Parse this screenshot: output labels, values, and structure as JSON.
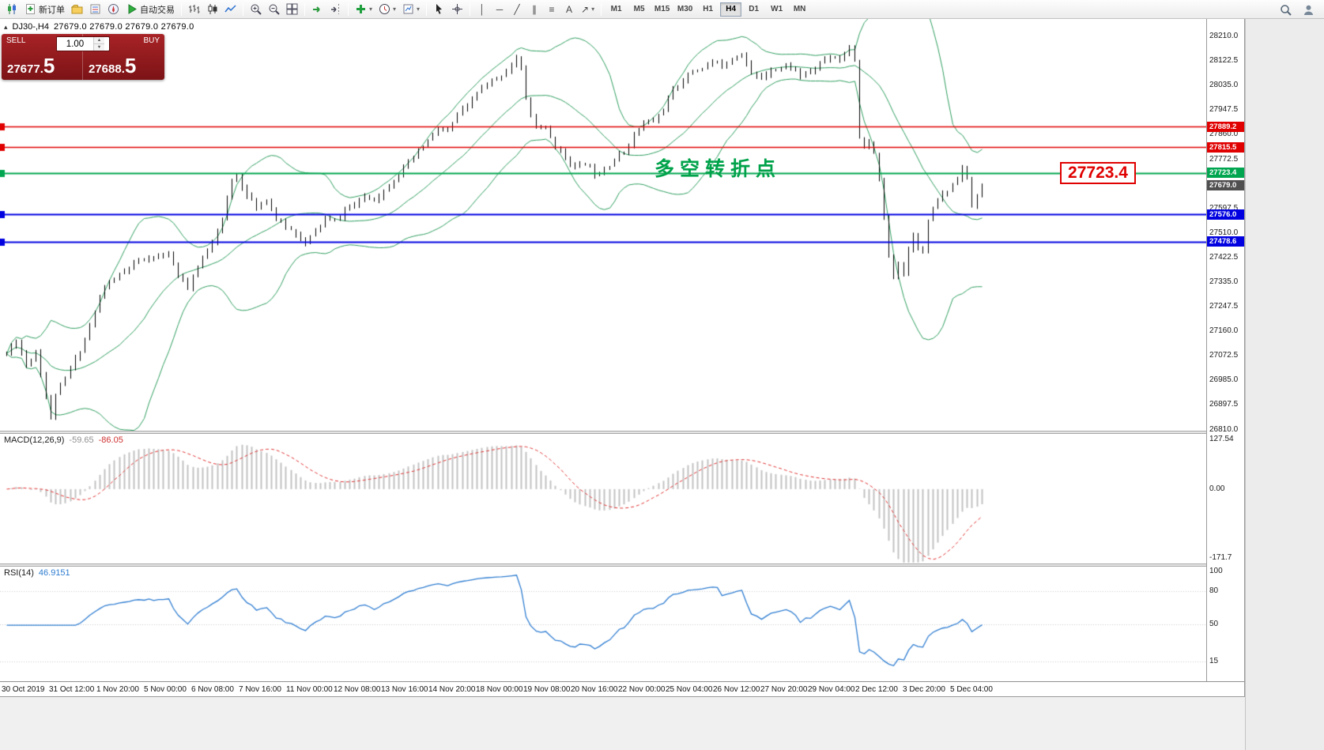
{
  "app": {
    "bg": "#f0f0f0"
  },
  "toolbar": {
    "groups": [
      {
        "name": "trade",
        "items": [
          {
            "name": "new-chart-button",
            "kind": "candles"
          },
          {
            "name": "new-order-button",
            "kind": "order",
            "label": "新订单"
          },
          {
            "name": "profiles-button",
            "kind": "folder"
          },
          {
            "name": "market-watch-button",
            "kind": "book"
          },
          {
            "name": "navigator-button",
            "kind": "nav"
          },
          {
            "name": "autotrading-button",
            "kind": "play",
            "label": "自动交易"
          }
        ]
      },
      {
        "name": "chart-types",
        "items": [
          {
            "name": "bar-chart-button",
            "kind": "bars"
          },
          {
            "name": "candlestick-chart-button",
            "kind": "candle"
          },
          {
            "name": "line-chart-button",
            "kind": "line"
          }
        ]
      },
      {
        "name": "zoom",
        "items": [
          {
            "name": "zoom-in-button",
            "kind": "zoomin"
          },
          {
            "name": "zoom-out-button",
            "kind": "zoomout"
          },
          {
            "name": "tile-windows-button",
            "kind": "grid"
          }
        ]
      },
      {
        "name": "scroll",
        "items": [
          {
            "name": "auto-scroll-button",
            "kind": "autoscroll"
          },
          {
            "name": "chart-shift-button",
            "kind": "shift"
          }
        ]
      },
      {
        "name": "dropdowns",
        "items": [
          {
            "name": "indicators-add-button",
            "kind": "plus",
            "caret": true
          },
          {
            "name": "periods-button",
            "kind": "clock",
            "caret": true
          },
          {
            "name": "templates-button",
            "kind": "template",
            "caret": true
          }
        ]
      },
      {
        "name": "cursors",
        "items": [
          {
            "name": "cursor-button",
            "kind": "cursor"
          },
          {
            "name": "crosshair-button",
            "kind": "crosshairsvg"
          }
        ]
      },
      {
        "name": "objects",
        "items": [
          {
            "name": "vertical-line-button",
            "kind": "vline"
          },
          {
            "name": "horizontal-line-button",
            "kind": "hline"
          },
          {
            "name": "trendline-button",
            "kind": "trend"
          },
          {
            "name": "channel-button",
            "kind": "channel"
          },
          {
            "name": "fibonacci-button",
            "kind": "fibo"
          },
          {
            "name": "text-tool-button",
            "kind": "text"
          },
          {
            "name": "arrows-tool-button",
            "kind": "arrows",
            "caret": true
          }
        ]
      }
    ],
    "timeframes": [
      "M1",
      "M5",
      "M15",
      "M30",
      "H1",
      "H4",
      "D1",
      "W1",
      "MN"
    ],
    "active_timeframe": "H4",
    "right_icons": [
      {
        "name": "search-button",
        "kind": "search"
      },
      {
        "name": "community-button",
        "kind": "person"
      }
    ],
    "icon_glyphs": {
      "vline": "│",
      "hline": "─",
      "trend": "╱",
      "channel": "∥",
      "fibo": "≡",
      "text": "A",
      "arrows": "↗",
      "caret": "▾",
      "collapse": "▴",
      "up": "▲",
      "down": "▼"
    }
  },
  "chart": {
    "symbol_title": "DJ30-,H4",
    "ohlc_text": "27679.0 27679.0 27679.0 27679.0",
    "annotation_text": "多空转折点",
    "price_callout": "27723.4",
    "trade_panel": {
      "sell_label": "SELL",
      "buy_label": "BUY",
      "sell_price": "27677.",
      "sell_price_big": "5",
      "buy_price": "27688.",
      "buy_price_big": "5",
      "volume": "1.00"
    },
    "current_price_tag": "27679.0",
    "current_price_tag_bg": "#4f4f4f",
    "levels": [
      {
        "price": 27889.2,
        "label": "27889.2",
        "color": "#e00000",
        "width": 1.6
      },
      {
        "price": 27815.5,
        "label": "27815.5",
        "color": "#e00000",
        "width": 1.6
      },
      {
        "price": 27723.4,
        "label": "27723.4",
        "color": "#00a64f",
        "width": 2
      },
      {
        "price": 27576.0,
        "label": "27576.0",
        "color": "#0000e0",
        "width": 2
      },
      {
        "price": 27478.6,
        "label": "27478.6",
        "color": "#0000e0",
        "width": 2
      }
    ],
    "axis": {
      "first": 28210.0,
      "step": 87.5,
      "count": 17
    }
  },
  "indicators": {
    "macd": {
      "label": "MACD(12,26,9)",
      "value": "-59.65",
      "signal_value": "-86.05",
      "axis_top": "127.54",
      "axis_zero": "0.00",
      "axis_bottom": "-171.7",
      "scale_max": 130,
      "scale_min": -175
    },
    "rsi": {
      "label": "RSI(14)",
      "value": "46.9151",
      "axis": [
        100,
        80,
        50,
        15
      ]
    }
  },
  "time_axis": [
    "30 Oct 2019",
    "31 Oct 12:00",
    "1 Nov 20:00",
    "5 Nov 00:00",
    "6 Nov 08:00",
    "7 Nov 16:00",
    "11 Nov 00:00",
    "12 Nov 08:00",
    "13 Nov 16:00",
    "14 Nov 20:00",
    "18 Nov 00:00",
    "19 Nov 08:00",
    "20 Nov 16:00",
    "22 Nov 00:00",
    "25 Nov 04:00",
    "26 Nov 12:00",
    "27 Nov 20:00",
    "29 Nov 04:00",
    "2 Dec 12:00",
    "3 Dec 20:00",
    "5 Dec 04:00"
  ],
  "chart_data": {
    "type": "candlestick",
    "symbol": "DJ30-",
    "timeframe": "H4",
    "num_bars": 200,
    "seed": 11,
    "last_close": 27679.0,
    "visible_range": {
      "price_top": 28272,
      "price_bottom": 26806
    },
    "overlays": {
      "bollinger_period": 20,
      "bollinger_dev": 2
    },
    "panes": [
      {
        "type": "macd",
        "fast": 12,
        "slow": 26,
        "signal": 9
      },
      {
        "type": "rsi",
        "period": 14
      }
    ],
    "price_path_anchors": [
      [
        0,
        27080
      ],
      [
        2,
        27130
      ],
      [
        4,
        27040
      ],
      [
        6,
        27090
      ],
      [
        8,
        26930
      ],
      [
        9,
        26850
      ],
      [
        10,
        26940
      ],
      [
        12,
        26990
      ],
      [
        14,
        27060
      ],
      [
        16,
        27130
      ],
      [
        18,
        27230
      ],
      [
        20,
        27320
      ],
      [
        23,
        27360
      ],
      [
        26,
        27400
      ],
      [
        29,
        27420
      ],
      [
        31,
        27430
      ],
      [
        33,
        27430
      ],
      [
        35,
        27360
      ],
      [
        37,
        27310
      ],
      [
        39,
        27390
      ],
      [
        41,
        27450
      ],
      [
        43,
        27520
      ],
      [
        44,
        27560
      ],
      [
        46,
        27700
      ],
      [
        47,
        27720
      ],
      [
        49,
        27640
      ],
      [
        51,
        27600
      ],
      [
        53,
        27630
      ],
      [
        55,
        27560
      ],
      [
        57,
        27530
      ],
      [
        59,
        27510
      ],
      [
        61,
        27470
      ],
      [
        63,
        27520
      ],
      [
        65,
        27560
      ],
      [
        67,
        27550
      ],
      [
        69,
        27590
      ],
      [
        71,
        27610
      ],
      [
        73,
        27640
      ],
      [
        75,
        27630
      ],
      [
        77,
        27660
      ],
      [
        79,
        27700
      ],
      [
        82,
        27760
      ],
      [
        84,
        27800
      ],
      [
        86,
        27840
      ],
      [
        88,
        27880
      ],
      [
        90,
        27870
      ],
      [
        92,
        27930
      ],
      [
        94,
        27960
      ],
      [
        96,
        28010
      ],
      [
        98,
        28040
      ],
      [
        100,
        28060
      ],
      [
        102,
        28090
      ],
      [
        104,
        28130
      ],
      [
        105,
        28090
      ],
      [
        106,
        27990
      ],
      [
        107,
        27930
      ],
      [
        108,
        27890
      ],
      [
        110,
        27880
      ],
      [
        112,
        27820
      ],
      [
        114,
        27780
      ],
      [
        116,
        27740
      ],
      [
        118,
        27760
      ],
      [
        120,
        27720
      ],
      [
        122,
        27740
      ],
      [
        124,
        27770
      ],
      [
        126,
        27800
      ],
      [
        128,
        27860
      ],
      [
        130,
        27900
      ],
      [
        132,
        27910
      ],
      [
        134,
        27950
      ],
      [
        136,
        28020
      ],
      [
        138,
        28060
      ],
      [
        140,
        28085
      ],
      [
        142,
        28100
      ],
      [
        144,
        28120
      ],
      [
        146,
        28105
      ],
      [
        148,
        28130
      ],
      [
        150,
        28155
      ],
      [
        152,
        28075
      ],
      [
        154,
        28060
      ],
      [
        156,
        28095
      ],
      [
        158,
        28100
      ],
      [
        160,
        28105
      ],
      [
        162,
        28070
      ],
      [
        164,
        28085
      ],
      [
        166,
        28115
      ],
      [
        168,
        28140
      ],
      [
        170,
        28130
      ],
      [
        172,
        28175
      ],
      [
        173,
        28130
      ],
      [
        174,
        27840
      ],
      [
        175,
        27810
      ],
      [
        176,
        27830
      ],
      [
        177,
        27790
      ],
      [
        178,
        27700
      ],
      [
        179,
        27560
      ],
      [
        180,
        27430
      ],
      [
        181,
        27355
      ],
      [
        182,
        27410
      ],
      [
        183,
        27370
      ],
      [
        184,
        27450
      ],
      [
        185,
        27510
      ],
      [
        186,
        27465
      ],
      [
        187,
        27440
      ],
      [
        188,
        27555
      ],
      [
        190,
        27630
      ],
      [
        192,
        27660
      ],
      [
        194,
        27710
      ],
      [
        195,
        27745
      ],
      [
        196,
        27700
      ],
      [
        197,
        27605
      ],
      [
        198,
        27640
      ],
      [
        199,
        27679
      ]
    ]
  }
}
